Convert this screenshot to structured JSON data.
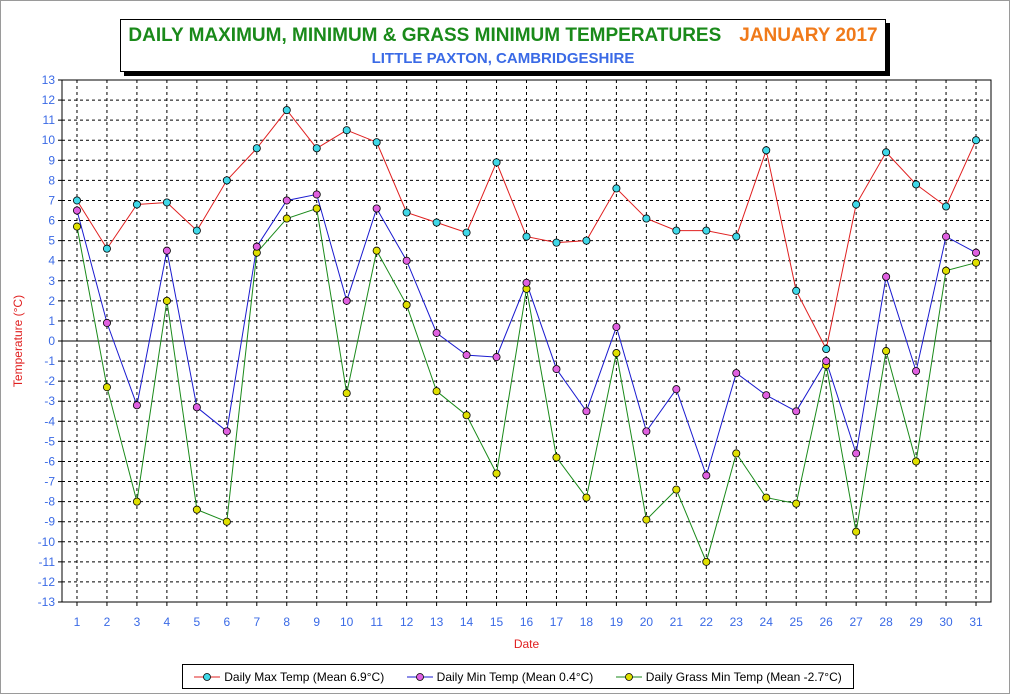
{
  "title": "DAILY MAXIMUM, MINIMUM & GRASS MINIMUM TEMPERATURES",
  "title_date": "JANUARY 2017",
  "subtitle": "LITTLE PAXTON, CAMBRIDGESHIRE",
  "colors": {
    "title": "#1a8a1a",
    "title_date": "#f07a1a",
    "subtitle": "#3a6ae6",
    "tick_labels": "#3a6ae6",
    "axis_title": "#e02020",
    "max_line": "#e02020",
    "max_marker": "#40d8e8",
    "min_line": "#1a1ad0",
    "min_marker": "#e060e0",
    "grass_line": "#1a8a1a",
    "grass_marker": "#e0e000"
  },
  "chart_data": {
    "type": "line",
    "xlabel": "Date",
    "ylabel": "Temperature (°C)",
    "ylim": [
      -13,
      13
    ],
    "y_ticks": [
      13,
      12,
      11,
      10,
      9,
      8,
      7,
      6,
      5,
      4,
      3,
      2,
      1,
      0,
      -1,
      -2,
      -3,
      -4,
      -5,
      -6,
      -7,
      -8,
      -9,
      -10,
      -11,
      -12,
      -13
    ],
    "x": [
      1,
      2,
      3,
      4,
      5,
      6,
      7,
      8,
      9,
      10,
      11,
      12,
      13,
      14,
      15,
      16,
      17,
      18,
      19,
      20,
      21,
      22,
      23,
      24,
      25,
      26,
      27,
      28,
      29,
      30,
      31
    ],
    "grid": true,
    "legend_position": "bottom",
    "series": [
      {
        "name": "Daily Max Temp (Mean 6.9°C)",
        "values": [
          7.0,
          4.6,
          6.8,
          6.9,
          5.5,
          8.0,
          9.6,
          11.5,
          9.6,
          10.5,
          9.9,
          6.4,
          5.9,
          5.4,
          8.9,
          5.2,
          4.9,
          5.0,
          7.6,
          6.1,
          5.5,
          5.5,
          5.2,
          9.5,
          2.5,
          -0.4,
          6.8,
          9.4,
          7.8,
          6.7,
          10.0
        ]
      },
      {
        "name": "Daily Min Temp (Mean 0.4°C)",
        "values": [
          6.5,
          0.9,
          -3.2,
          4.5,
          -3.3,
          -4.5,
          4.7,
          7.0,
          7.3,
          2.0,
          6.6,
          4.0,
          0.4,
          -0.7,
          -0.8,
          2.9,
          -1.4,
          -3.5,
          0.7,
          -4.5,
          -2.4,
          -6.7,
          -1.6,
          -2.7,
          -3.5,
          -1.0,
          -5.6,
          3.2,
          -1.5,
          5.2,
          4.4
        ]
      },
      {
        "name": "Daily Grass Min Temp (Mean -2.7°C)",
        "values": [
          5.7,
          -2.3,
          -8.0,
          2.0,
          -8.4,
          -9.0,
          4.4,
          6.1,
          6.6,
          -2.6,
          4.5,
          1.8,
          -2.5,
          -3.7,
          -6.6,
          2.6,
          -5.8,
          -7.8,
          -0.6,
          -8.9,
          -7.4,
          -11.0,
          -5.6,
          -7.8,
          -8.1,
          -1.2,
          -9.5,
          -0.5,
          -6.0,
          3.5,
          3.9
        ]
      }
    ]
  }
}
